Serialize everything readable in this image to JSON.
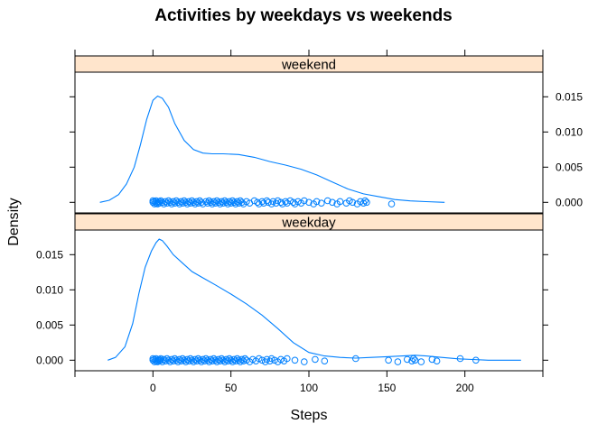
{
  "chart_data": {
    "type": "line",
    "title": "Activities by weekdays vs weekends",
    "xlabel": "Steps",
    "ylabel": "Density",
    "xlim": [
      -50,
      250
    ],
    "ylim": [
      -0.0015,
      0.0185
    ],
    "x_ticks": [
      0,
      50,
      100,
      150,
      200
    ],
    "y_ticks": [
      0.0,
      0.005,
      0.01,
      0.015
    ],
    "y_tick_labels": [
      "0.000",
      "0.005",
      "0.010",
      "0.015"
    ],
    "grid": false,
    "legend": "none",
    "colors": {
      "series": "#0080ff",
      "strip_bg": "#ffe5cc",
      "frame": "#000000"
    },
    "panels": [
      {
        "name": "weekend",
        "y_axis_side": "right",
        "density": {
          "x": [
            -34,
            -28,
            -22,
            -17,
            -12,
            -8,
            -4,
            0,
            3,
            6,
            10,
            14,
            20,
            26,
            32,
            38,
            45,
            55,
            65,
            75,
            85,
            95,
            105,
            115,
            125,
            135,
            145,
            155,
            165,
            175,
            187
          ],
          "y": [
            0.0,
            0.0003,
            0.0011,
            0.0026,
            0.005,
            0.0082,
            0.0118,
            0.0145,
            0.0151,
            0.0148,
            0.0135,
            0.0112,
            0.0088,
            0.0075,
            0.007,
            0.0069,
            0.0069,
            0.0068,
            0.0064,
            0.0058,
            0.0053,
            0.0047,
            0.0039,
            0.0029,
            0.0019,
            0.0012,
            0.0008,
            0.0004,
            0.0002,
            0.0001,
            0.0
          ]
        },
        "rug": [
          0,
          0,
          1,
          1,
          2,
          2,
          3,
          3,
          4,
          4,
          5,
          6,
          7,
          8,
          9,
          10,
          11,
          12,
          13,
          14,
          15,
          16,
          17,
          18,
          19,
          20,
          21,
          22,
          23,
          24,
          25,
          26,
          27,
          28,
          29,
          30,
          31,
          32,
          34,
          35,
          36,
          37,
          38,
          39,
          40,
          41,
          42,
          43,
          44,
          45,
          46,
          47,
          48,
          49,
          50,
          51,
          52,
          53,
          54,
          55,
          56,
          57,
          58,
          60,
          62,
          65,
          67,
          68,
          70,
          71,
          73,
          74,
          76,
          77,
          79,
          80,
          82,
          83,
          85,
          86,
          88,
          90,
          91,
          93,
          95,
          97,
          100,
          103,
          105,
          108,
          112,
          115,
          118,
          120,
          124,
          126,
          128,
          131,
          133,
          135,
          136,
          137,
          153
        ]
      },
      {
        "name": "weekday",
        "y_axis_side": "left",
        "density": {
          "x": [
            -29,
            -24,
            -18,
            -13,
            -9,
            -5,
            -1,
            2,
            4,
            6,
            9,
            13,
            19,
            25,
            32,
            40,
            50,
            60,
            70,
            80,
            90,
            100,
            110,
            120,
            130,
            140,
            150,
            160,
            168,
            175,
            185,
            195,
            205,
            215,
            225,
            236
          ],
          "y": [
            0.0,
            0.0004,
            0.0019,
            0.0052,
            0.0095,
            0.0132,
            0.0155,
            0.0167,
            0.0172,
            0.017,
            0.0162,
            0.015,
            0.0138,
            0.0126,
            0.0117,
            0.0107,
            0.0094,
            0.008,
            0.0064,
            0.0045,
            0.0025,
            0.0011,
            0.0006,
            0.0004,
            0.0003,
            0.0004,
            0.0005,
            0.0006,
            0.0007,
            0.0006,
            0.0004,
            0.0002,
            0.0001,
            0.0,
            0.0,
            0.0
          ]
        },
        "rug": [
          0,
          0,
          1,
          1,
          2,
          2,
          3,
          3,
          4,
          4,
          5,
          5,
          6,
          7,
          8,
          9,
          10,
          11,
          12,
          13,
          14,
          15,
          16,
          17,
          18,
          19,
          20,
          21,
          22,
          23,
          24,
          25,
          26,
          27,
          28,
          29,
          30,
          31,
          32,
          33,
          34,
          35,
          36,
          37,
          38,
          39,
          40,
          41,
          42,
          43,
          44,
          45,
          46,
          47,
          48,
          49,
          50,
          51,
          52,
          53,
          54,
          55,
          56,
          57,
          58,
          59,
          60,
          62,
          64,
          66,
          68,
          70,
          72,
          73,
          75,
          76,
          78,
          80,
          82,
          84,
          86,
          91,
          97,
          104,
          110,
          130,
          151,
          157,
          163,
          166,
          167,
          168,
          172,
          179,
          182,
          197,
          207
        ]
      }
    ]
  }
}
